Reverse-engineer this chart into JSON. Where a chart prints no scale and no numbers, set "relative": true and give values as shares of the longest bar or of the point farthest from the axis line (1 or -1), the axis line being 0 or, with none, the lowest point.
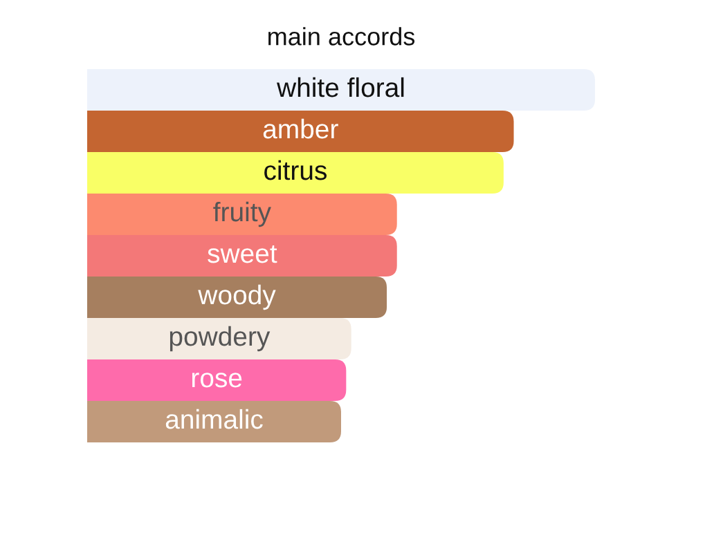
{
  "chart_data": {
    "type": "bar",
    "title": "main accords",
    "orientation": "horizontal",
    "relative": true,
    "categories": [
      "white floral",
      "amber",
      "citrus",
      "fruity",
      "sweet",
      "woody",
      "powdery",
      "rose",
      "animalic"
    ],
    "values": [
      1,
      0.84,
      0.82,
      0.61,
      0.61,
      0.59,
      0.52,
      0.51,
      0.5
    ],
    "colors": [
      "#edf2fb",
      "#c46531",
      "#f9ff66",
      "#fc8a6f",
      "#f37878",
      "#a67f5f",
      "#f4ebe2",
      "#fe6bab",
      "#c19a7b"
    ]
  }
}
